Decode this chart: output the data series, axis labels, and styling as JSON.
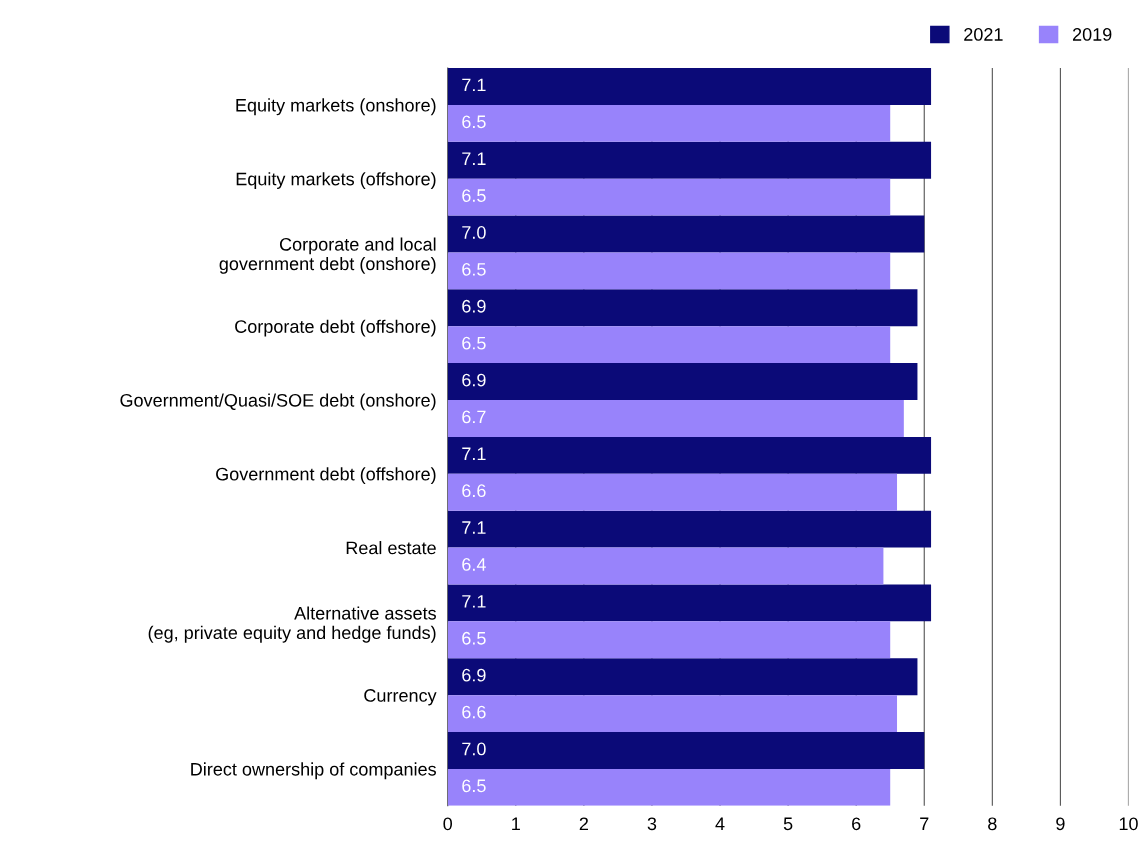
{
  "chart_data": {
    "type": "bar",
    "orientation": "horizontal",
    "categories": [
      "Equity markets (onshore)",
      "Equity markets (offshore)",
      "Corporate and local\ngovernment debt (onshore)",
      "Corporate debt (offshore)",
      "Government/Quasi/SOE debt (onshore)",
      "Government debt (offshore)",
      "Real estate",
      "Alternative assets\n(eg, private equity and hedge funds)",
      "Currency",
      "Direct ownership of companies"
    ],
    "series": [
      {
        "name": "2021",
        "color": "#0b0a78",
        "values": [
          7.1,
          7.1,
          7.0,
          6.9,
          6.9,
          7.1,
          7.1,
          7.1,
          6.9,
          7.0
        ],
        "value_labels": [
          "7.1",
          "7.1",
          "7.0",
          "6.9",
          "6.9",
          "7.1",
          "7.1",
          "7.1",
          "6.9",
          "7.0"
        ]
      },
      {
        "name": "2019",
        "color": "#9883fb",
        "values": [
          6.5,
          6.5,
          6.5,
          6.5,
          6.7,
          6.6,
          6.4,
          6.5,
          6.6,
          6.5
        ],
        "value_labels": [
          "6.5",
          "6.5",
          "6.5",
          "6.5",
          "6.7",
          "6.6",
          "6.4",
          "6.5",
          "6.6",
          "6.5"
        ]
      }
    ],
    "xlim": [
      0,
      10
    ],
    "xticks": [
      0,
      1,
      2,
      3,
      4,
      5,
      6,
      7,
      8,
      9,
      10
    ],
    "grid": "x",
    "legend": "top right"
  }
}
